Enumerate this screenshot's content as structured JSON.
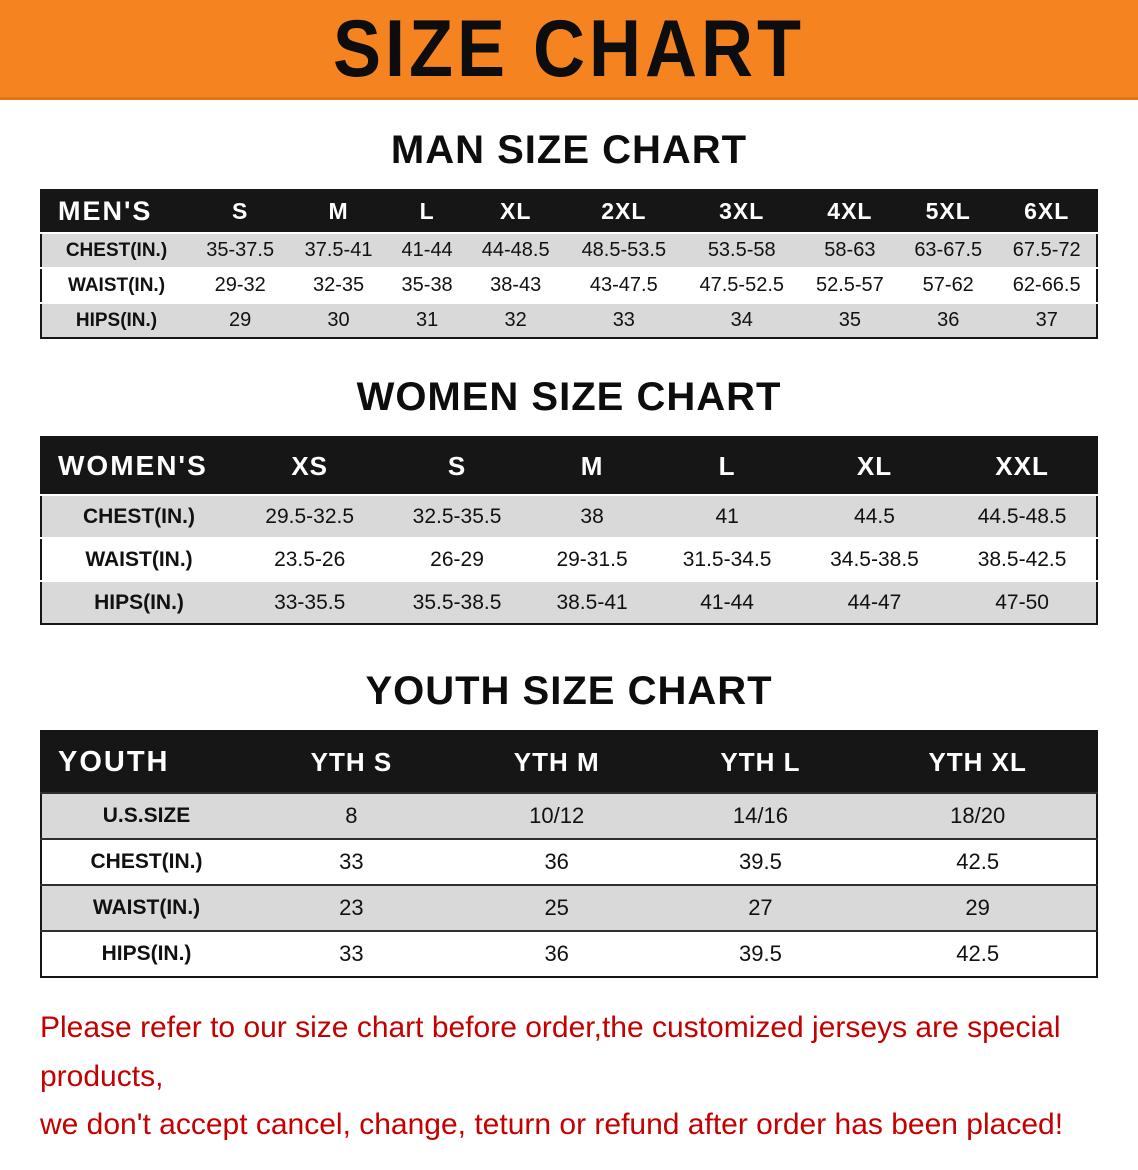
{
  "banner": {
    "title": "SIZE CHART",
    "bg_color": "#f5831f",
    "text_color": "#0d0d0d"
  },
  "sections": {
    "men": {
      "heading": "MAN SIZE CHART",
      "table": {
        "header": [
          "MEN'S",
          "S",
          "M",
          "L",
          "XL",
          "2XL",
          "3XL",
          "4XL",
          "5XL",
          "6XL"
        ],
        "rows": [
          [
            "CHEST(IN.)",
            "35-37.5",
            "37.5-41",
            "41-44",
            "44-48.5",
            "48.5-53.5",
            "53.5-58",
            "58-63",
            "63-67.5",
            "67.5-72"
          ],
          [
            "WAIST(IN.)",
            "29-32",
            "32-35",
            "35-38",
            "38-43",
            "43-47.5",
            "47.5-52.5",
            "52.5-57",
            "57-62",
            "62-66.5"
          ],
          [
            "HIPS(IN.)",
            "29",
            "30",
            "31",
            "32",
            "33",
            "34",
            "35",
            "36",
            "37"
          ]
        ]
      }
    },
    "women": {
      "heading": "WOMEN SIZE CHART",
      "table": {
        "header": [
          "WOMEN'S",
          "XS",
          "S",
          "M",
          "L",
          "XL",
          "XXL"
        ],
        "rows": [
          [
            "CHEST(IN.)",
            "29.5-32.5",
            "32.5-35.5",
            "38",
            "41",
            "44.5",
            "44.5-48.5"
          ],
          [
            "WAIST(IN.)",
            "23.5-26",
            "26-29",
            "29-31.5",
            "31.5-34.5",
            "34.5-38.5",
            "38.5-42.5"
          ],
          [
            "HIPS(IN.)",
            "33-35.5",
            "35.5-38.5",
            "38.5-41",
            "41-44",
            "44-47",
            "47-50"
          ]
        ]
      }
    },
    "youth": {
      "heading": "YOUTH SIZE CHART",
      "table": {
        "header": [
          "YOUTH",
          "YTH S",
          "YTH M",
          "YTH L",
          "YTH XL"
        ],
        "rows": [
          [
            "U.S.SIZE",
            "8",
            "10/12",
            "14/16",
            "18/20"
          ],
          [
            "CHEST(IN.)",
            "33",
            "36",
            "39.5",
            "42.5"
          ],
          [
            "WAIST(IN.)",
            "23",
            "25",
            "27",
            "29"
          ],
          [
            "HIPS(IN.)",
            "33",
            "36",
            "39.5",
            "42.5"
          ]
        ]
      }
    }
  },
  "footer": {
    "line1": "Please refer to our size chart before order,the customized jerseys are special products,",
    "line2": "we don't accept cancel, change, teturn or refund after order has been placed!",
    "text_color": "#c40000"
  }
}
